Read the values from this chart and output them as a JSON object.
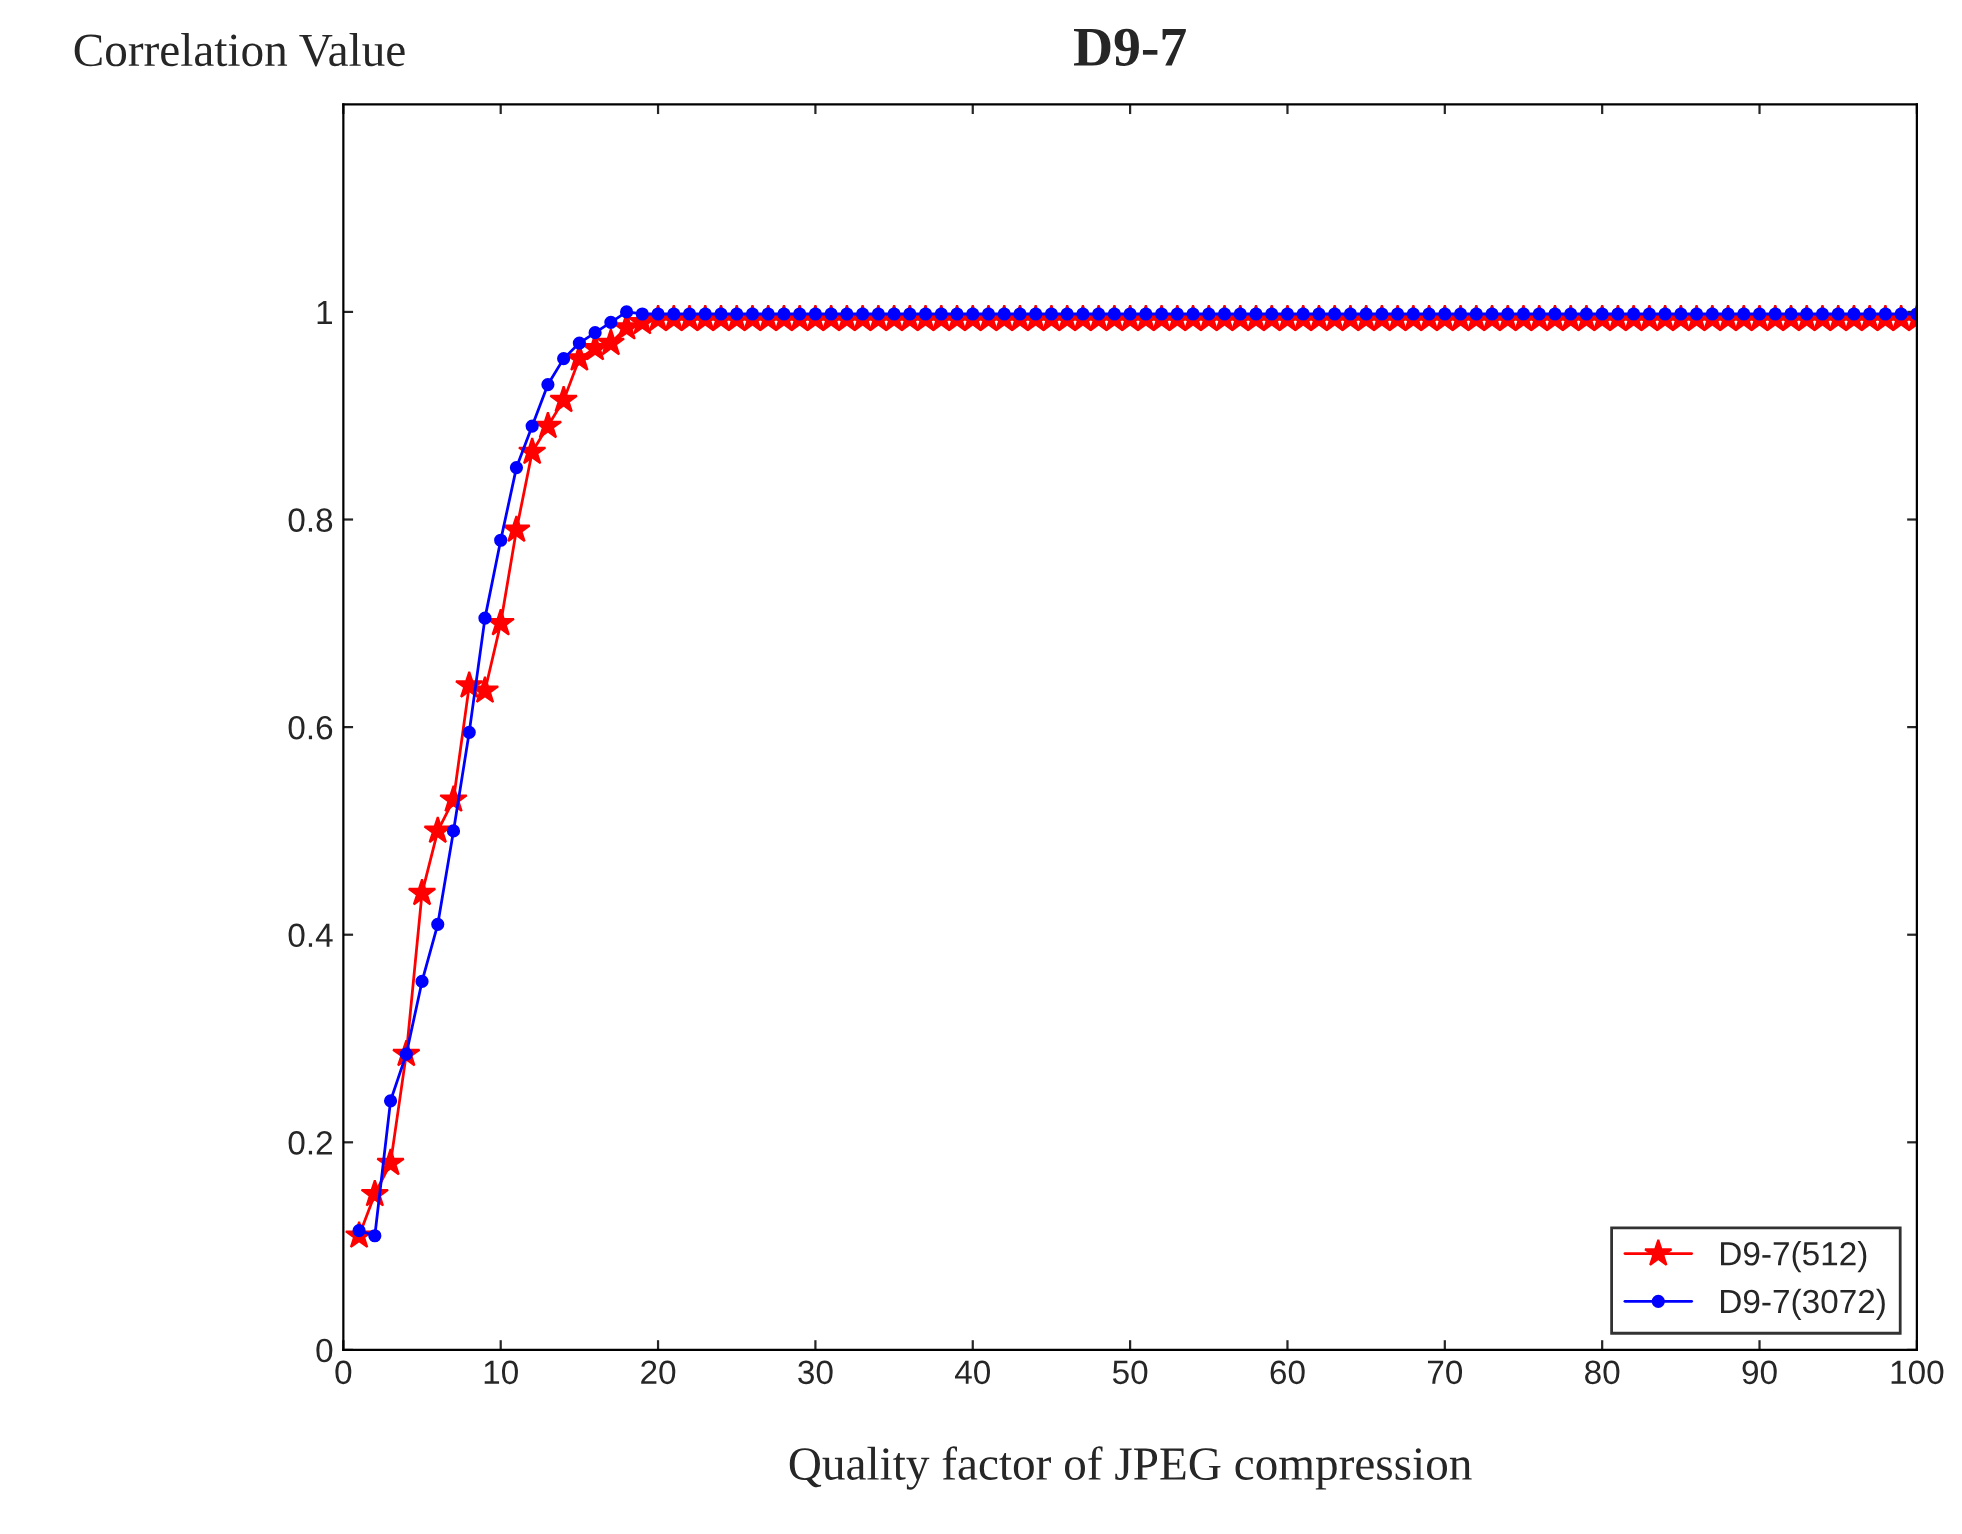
{
  "chart_data": {
    "type": "line",
    "title": "D9-7",
    "xlabel": "Quality factor of JPEG compression",
    "ylabel": "Correlation Value",
    "x": [
      1,
      2,
      3,
      4,
      5,
      6,
      7,
      8,
      9,
      10,
      11,
      12,
      13,
      14,
      15,
      16,
      17,
      18,
      19,
      20,
      21,
      22,
      23,
      24,
      25,
      26,
      27,
      28,
      29,
      30,
      31,
      32,
      33,
      34,
      35,
      36,
      37,
      38,
      39,
      40,
      41,
      42,
      43,
      44,
      45,
      46,
      47,
      48,
      49,
      50,
      51,
      52,
      53,
      54,
      55,
      56,
      57,
      58,
      59,
      60,
      61,
      62,
      63,
      64,
      65,
      66,
      67,
      68,
      69,
      70,
      71,
      72,
      73,
      74,
      75,
      76,
      77,
      78,
      79,
      80,
      81,
      82,
      83,
      84,
      85,
      86,
      87,
      88,
      89,
      90,
      91,
      92,
      93,
      94,
      95,
      96,
      97,
      98,
      99,
      100
    ],
    "series": [
      {
        "name": "D9-7(512)",
        "color": "#ff0000",
        "marker": "star",
        "values": [
          0.11,
          0.15,
          0.18,
          0.285,
          0.44,
          0.5,
          0.53,
          0.64,
          0.635,
          0.7,
          0.79,
          0.865,
          0.89,
          0.915,
          0.955,
          0.965,
          0.97,
          0.985,
          0.99,
          0.993,
          0.993,
          0.993,
          0.993,
          0.993,
          0.993,
          0.993,
          0.993,
          0.993,
          0.993,
          0.993,
          0.993,
          0.993,
          0.993,
          0.993,
          0.993,
          0.993,
          0.993,
          0.993,
          0.993,
          0.993,
          0.993,
          0.993,
          0.993,
          0.993,
          0.993,
          0.993,
          0.993,
          0.993,
          0.993,
          0.993,
          0.993,
          0.993,
          0.993,
          0.993,
          0.993,
          0.993,
          0.993,
          0.993,
          0.993,
          0.993,
          0.993,
          0.993,
          0.993,
          0.993,
          0.993,
          0.993,
          0.993,
          0.993,
          0.993,
          0.993,
          0.993,
          0.993,
          0.993,
          0.993,
          0.993,
          0.993,
          0.993,
          0.993,
          0.993,
          0.993,
          0.993,
          0.993,
          0.993,
          0.993,
          0.993,
          0.993,
          0.993,
          0.993,
          0.993,
          0.993,
          0.993,
          0.993,
          0.993,
          0.993,
          0.993,
          0.993,
          0.993,
          0.993,
          0.993,
          0.993
        ]
      },
      {
        "name": "D9-7(3072)",
        "color": "#0000ff",
        "marker": "circle",
        "values": [
          0.115,
          0.11,
          0.24,
          0.285,
          0.355,
          0.41,
          0.5,
          0.595,
          0.705,
          0.78,
          0.85,
          0.89,
          0.93,
          0.955,
          0.97,
          0.98,
          0.99,
          1.0,
          0.998,
          0.998,
          0.998,
          0.998,
          0.998,
          0.998,
          0.998,
          0.998,
          0.998,
          0.998,
          0.998,
          0.998,
          0.998,
          0.998,
          0.998,
          0.998,
          0.998,
          0.998,
          0.998,
          0.998,
          0.998,
          0.998,
          0.998,
          0.998,
          0.998,
          0.998,
          0.998,
          0.998,
          0.998,
          0.998,
          0.998,
          0.998,
          0.998,
          0.998,
          0.998,
          0.998,
          0.998,
          0.998,
          0.998,
          0.998,
          0.998,
          0.998,
          0.998,
          0.998,
          0.998,
          0.998,
          0.998,
          0.998,
          0.998,
          0.998,
          0.998,
          0.998,
          0.998,
          0.998,
          0.998,
          0.998,
          0.998,
          0.998,
          0.998,
          0.998,
          0.998,
          0.998,
          0.998,
          0.998,
          0.998,
          0.998,
          0.998,
          0.998,
          0.998,
          0.998,
          0.998,
          0.998,
          0.998,
          0.998,
          0.998,
          0.998,
          0.998,
          0.998,
          0.998,
          0.998,
          0.998,
          0.998
        ]
      }
    ],
    "xlim": [
      0,
      100
    ],
    "xticks": [
      0,
      10,
      20,
      30,
      40,
      50,
      60,
      70,
      80,
      90,
      100
    ],
    "ylim": [
      0,
      1.2
    ],
    "yticks": [
      0,
      0.2,
      0.4,
      0.6,
      0.8,
      1
    ],
    "grid": false,
    "legend": "bottom right",
    "line_style": "solid"
  }
}
